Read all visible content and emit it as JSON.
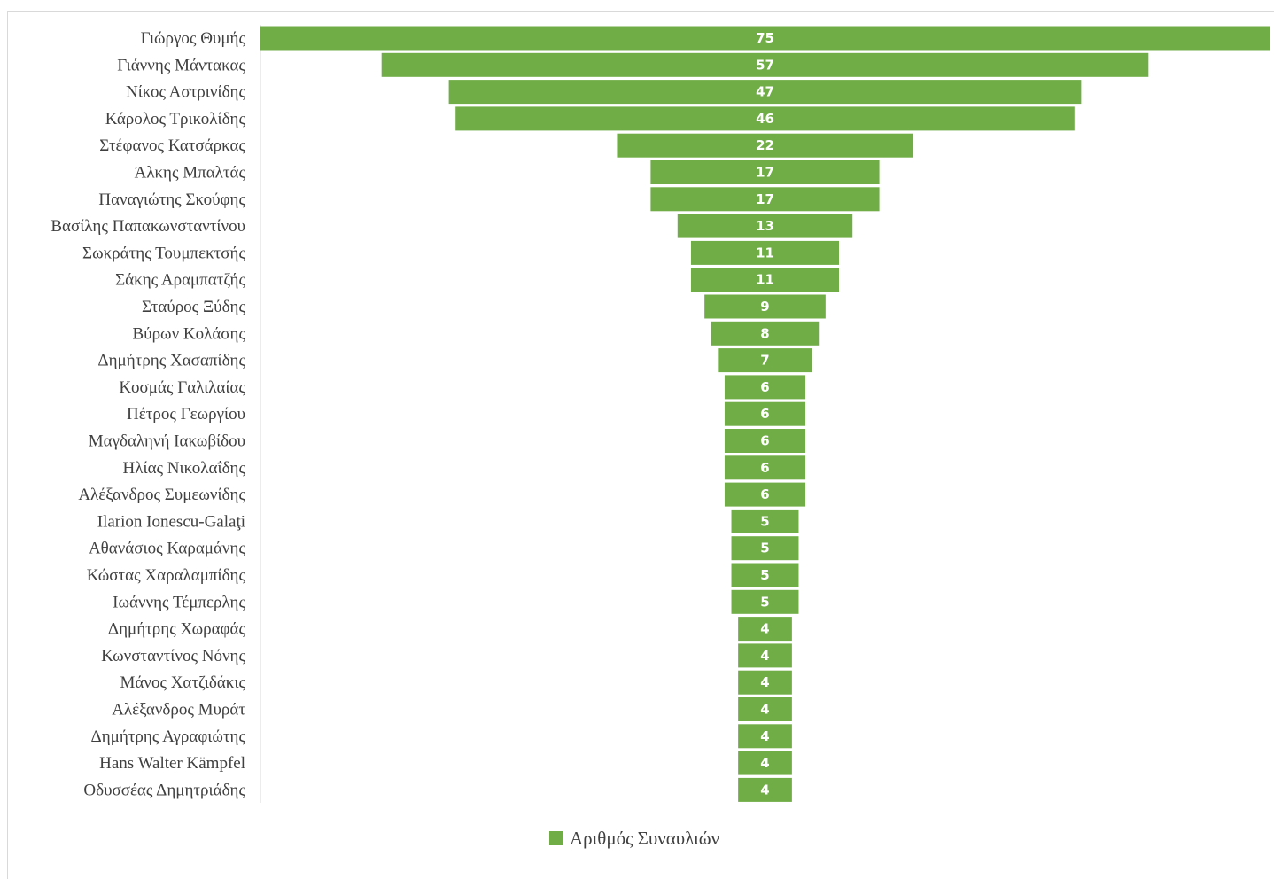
{
  "chart_data": {
    "type": "bar",
    "orientation": "horizontal-centered-funnel",
    "title": "",
    "xlabel": "",
    "ylabel": "",
    "categories": [
      "Γιώργος Θυμής",
      "Γιάννης Μάντακας",
      "Νίκος Αστρινίδης",
      "Κάρολος Τρικολίδης",
      "Στέφανος Κατσάρκας",
      "Άλκης Μπαλτάς",
      "Παναγιώτης Σκούφης",
      "Βασίλης Παπακωνσταντίνου",
      "Σωκράτης Τουμπεκτσής",
      "Σάκης Αραμπατζής",
      "Σταύρος Ξύδης",
      "Βύρων Κολάσης",
      "Δημήτρης Χασαπίδης",
      "Κοσμάς Γαλιλαίας",
      "Πέτρος Γεωργίου",
      "Μαγδαληνή Ιακωβίδου",
      "Ηλίας Νικολαΐδης",
      "Αλέξανδρος Συμεωνίδης",
      "Ilarion Ionescu-Galaţi",
      "Αθανάσιος Καραμάνης",
      "Κώστας Χαραλαμπίδης",
      "Ιωάννης Τέμπερλης",
      "Δημήτρης Χωραφάς",
      "Κωνσταντίνος Νόνης",
      "Μάνος Χατζιδάκις",
      "Αλέξανδρος Μυράτ",
      "Δημήτρης Αγραφιώτης",
      "Hans Walter Kämpfel",
      "Οδυσσέας Δημητριάδης"
    ],
    "series": [
      {
        "name": "Αριθμός Συναυλιών",
        "color": "#70ad47",
        "values": [
          75,
          57,
          47,
          46,
          22,
          17,
          17,
          13,
          11,
          11,
          9,
          8,
          7,
          6,
          6,
          6,
          6,
          6,
          5,
          5,
          5,
          5,
          4,
          4,
          4,
          4,
          4,
          4,
          4
        ]
      }
    ],
    "xlim": [
      0,
      75
    ],
    "grid": false,
    "legend_position": "bottom"
  }
}
